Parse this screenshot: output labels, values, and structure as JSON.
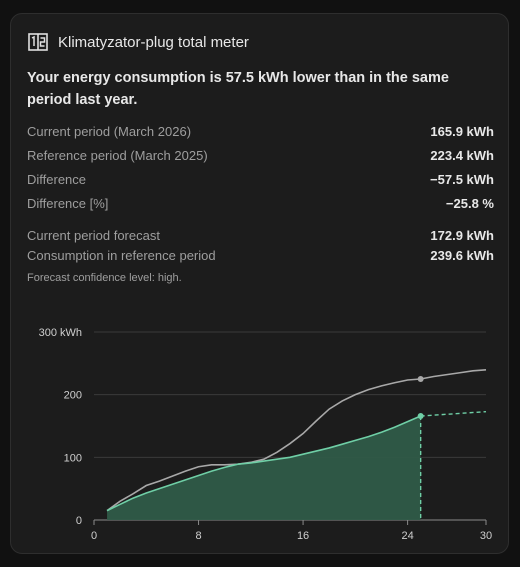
{
  "card": {
    "title": "Klimatyzator-plug total meter",
    "icon": "meter-icon",
    "summary": "Your energy consumption is 57.5 kWh lower than in the same period last year."
  },
  "stats": [
    {
      "label": "Current period (March 2026)",
      "value": "165.9 kWh"
    },
    {
      "label": "Reference period (March 2025)",
      "value": "223.4 kWh"
    },
    {
      "label": "Difference",
      "value": "−57.5 kWh"
    },
    {
      "label": "Difference [%]",
      "value": "−25.8 %"
    }
  ],
  "forecast": [
    {
      "label": "Current period forecast",
      "value": "172.9 kWh"
    },
    {
      "label": "Consumption in reference period",
      "value": "239.6 kWh"
    }
  ],
  "note": "Forecast confidence level: high.",
  "colors": {
    "current": "#6fcfa6",
    "reference": "#a8a8a8",
    "fill": "#2f5b48"
  },
  "chart_data": {
    "type": "line",
    "ylabel_unit": "kWh",
    "xlim": [
      0,
      30
    ],
    "ylim": [
      0,
      300
    ],
    "x_ticks": [
      "0",
      "8",
      "16",
      "24",
      "30"
    ],
    "x_tick_values": [
      0,
      8,
      16,
      24,
      30
    ],
    "y_ticks": [
      "0",
      "100",
      "200",
      "300 kWh"
    ],
    "y_tick_values": [
      0,
      100,
      200,
      300
    ],
    "series": [
      {
        "key": "reference",
        "x": [
          1,
          2,
          3,
          4,
          5,
          6,
          7,
          8,
          9,
          10,
          11,
          12,
          13,
          14,
          15,
          16,
          17,
          18,
          19,
          20,
          21,
          22,
          23,
          24,
          25,
          26,
          27,
          28,
          29,
          30
        ],
        "values": [
          15,
          30,
          42,
          55,
          62,
          70,
          78,
          85,
          88,
          88,
          89,
          92,
          97,
          108,
          122,
          138,
          158,
          177,
          190,
          200,
          208,
          214,
          219,
          223.4,
          225,
          229,
          232,
          235,
          238,
          239.6
        ]
      },
      {
        "key": "current",
        "x": [
          1,
          2,
          3,
          4,
          5,
          6,
          7,
          8,
          9,
          10,
          11,
          12,
          13,
          14,
          15,
          16,
          17,
          18,
          19,
          20,
          21,
          22,
          23,
          24,
          25
        ],
        "values": [
          15,
          25,
          35,
          43,
          50,
          57,
          64,
          71,
          78,
          84,
          89,
          91,
          94,
          97,
          100,
          105,
          110,
          115,
          121,
          127,
          133,
          140,
          148,
          157,
          165.9
        ]
      },
      {
        "key": "current-forecast",
        "x": [
          25,
          30
        ],
        "values": [
          165.9,
          172.9
        ]
      }
    ],
    "marker_x": 25
  }
}
